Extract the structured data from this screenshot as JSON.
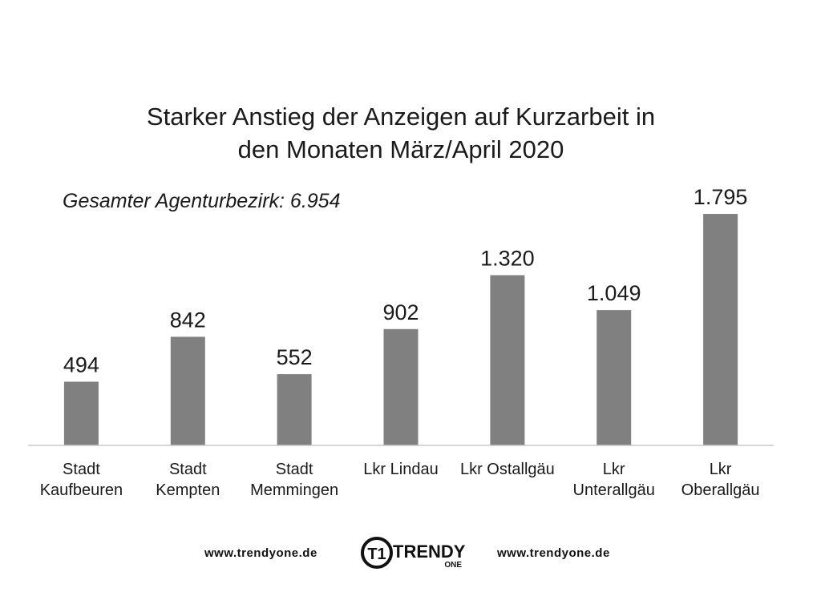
{
  "chart_data": {
    "type": "bar",
    "title_lines": [
      "Starker Anstieg der Anzeigen auf Kurzarbeit in",
      "den Monaten März/April 2020"
    ],
    "subtitle": "Gesamter Agenturbezirk: 6.954",
    "categories": [
      [
        "Stadt",
        "Kaufbeuren"
      ],
      [
        "Stadt",
        "Kempten"
      ],
      [
        "Stadt",
        "Memmingen"
      ],
      [
        "Lkr Lindau"
      ],
      [
        "Lkr Ostallgäu"
      ],
      [
        "Lkr",
        "Unterallgäu"
      ],
      [
        "Lkr",
        "Oberallgäu"
      ]
    ],
    "values": [
      494,
      842,
      552,
      902,
      1320,
      1049,
      1795
    ],
    "value_labels": [
      "494",
      "842",
      "552",
      "902",
      "1.320",
      "1.049",
      "1.795"
    ],
    "ylim": [
      0,
      1900
    ],
    "grid": false,
    "bar_color": "#808080",
    "axis_color": "#c8c8c8"
  },
  "footer": {
    "url_left": "www.trendyone.de",
    "url_right": "www.trendyone.de",
    "logo_text": "TRENDY",
    "logo_subtext": "ONE",
    "logo_mark": "T1"
  }
}
